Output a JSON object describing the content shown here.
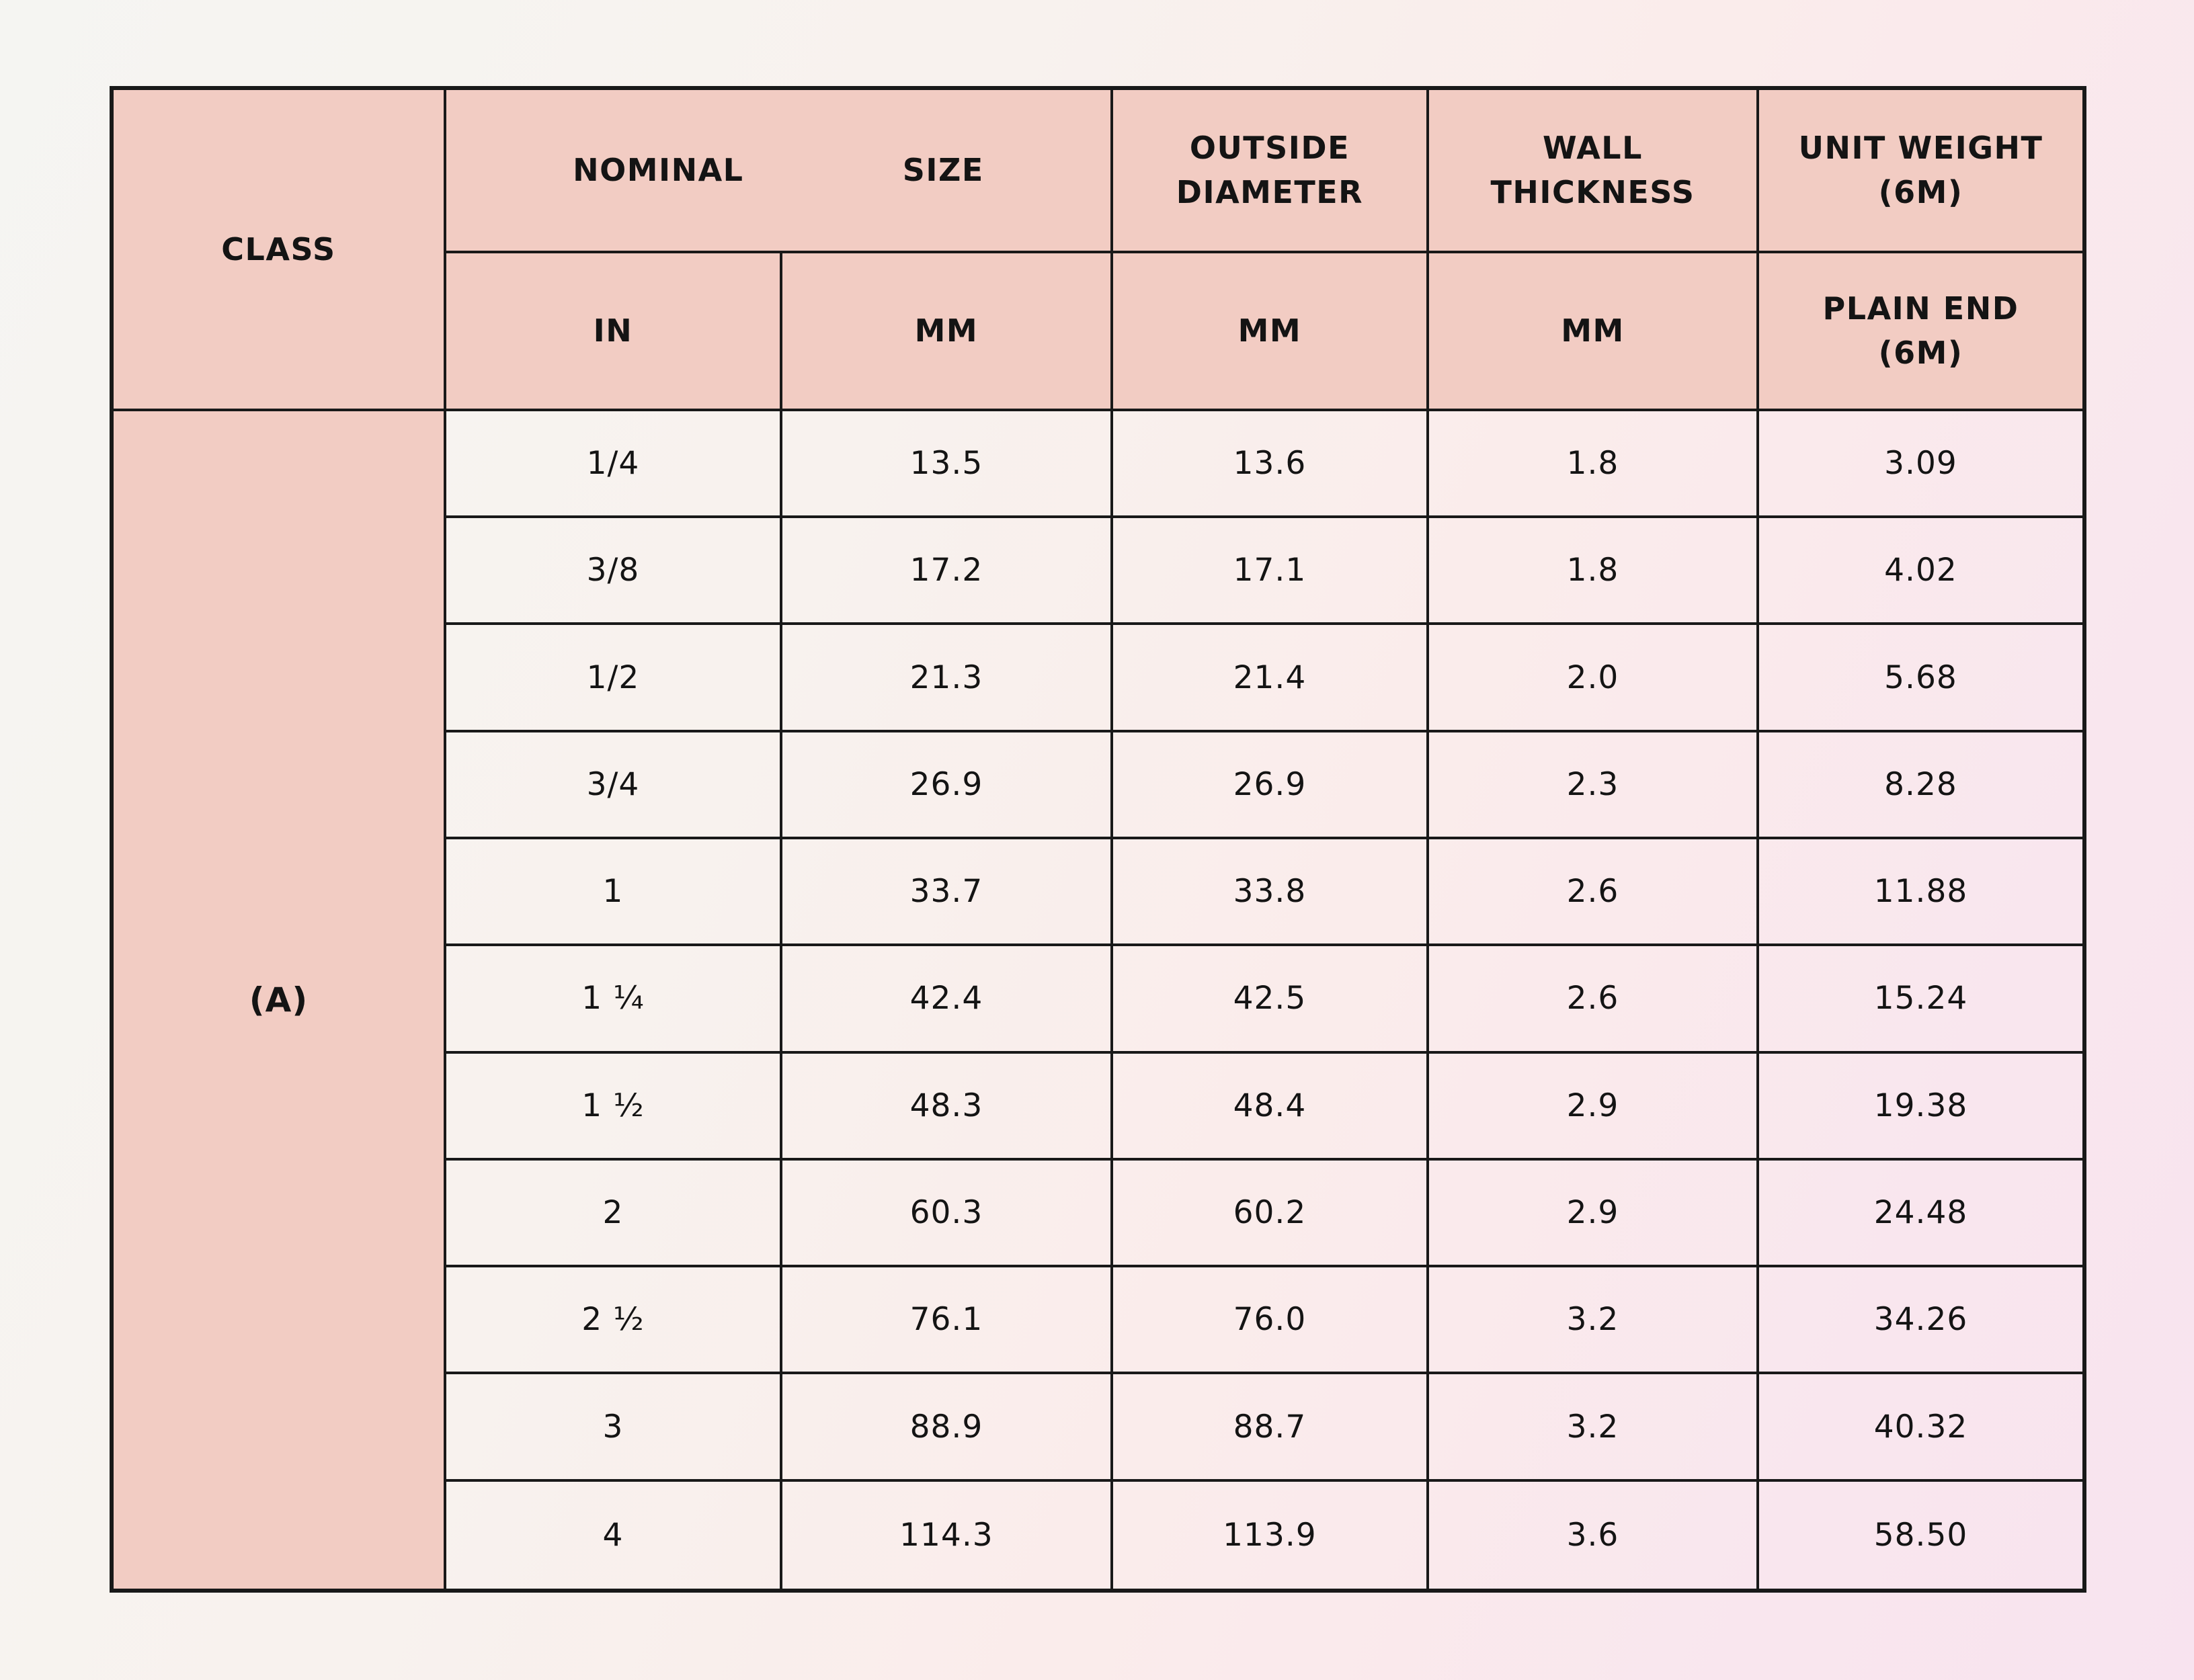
{
  "table": {
    "header": {
      "class_label": "CLASS",
      "nominal_size": {
        "word1": "NOMINAL",
        "word2": "SIZE",
        "sub_in": "IN",
        "sub_mm": "MM"
      },
      "outside_diameter": {
        "line1": "OUTSIDE",
        "line2": "DIAMETER",
        "sub": "MM"
      },
      "wall_thickness": {
        "line1": "WALL",
        "line2": "THICKNESS",
        "sub": "MM"
      },
      "unit_weight": {
        "line1": "UNIT WEIGHT",
        "line2": "(6M)",
        "sub_line1": "PLAIN END",
        "sub_line2": "(6M)"
      }
    },
    "class_value": "(A)",
    "columns": [
      "NOMINAL SIZE IN",
      "NOMINAL SIZE MM",
      "OUTSIDE DIAMETER MM",
      "WALL THICKNESS MM",
      "UNIT WEIGHT (6M) PLAIN END (6M)"
    ],
    "rows": [
      {
        "in": "1/4",
        "mm": "13.5",
        "od": "13.6",
        "wall": "1.8",
        "weight": "3.09"
      },
      {
        "in": "3/8",
        "mm": "17.2",
        "od": "17.1",
        "wall": "1.8",
        "weight": "4.02"
      },
      {
        "in": "1/2",
        "mm": "21.3",
        "od": "21.4",
        "wall": "2.0",
        "weight": "5.68"
      },
      {
        "in": "3/4",
        "mm": "26.9",
        "od": "26.9",
        "wall": "2.3",
        "weight": "8.28"
      },
      {
        "in": "1",
        "mm": "33.7",
        "od": "33.8",
        "wall": "2.6",
        "weight": "11.88"
      },
      {
        "in": "1 ¼",
        "mm": "42.4",
        "od": "42.5",
        "wall": "2.6",
        "weight": "15.24"
      },
      {
        "in": "1 ½",
        "mm": "48.3",
        "od": "48.4",
        "wall": "2.9",
        "weight": "19.38"
      },
      {
        "in": "2",
        "mm": "60.3",
        "od": "60.2",
        "wall": "2.9",
        "weight": "24.48"
      },
      {
        "in": "2 ½",
        "mm": "76.1",
        "od": "76.0",
        "wall": "3.2",
        "weight": "34.26"
      },
      {
        "in": "3",
        "mm": "88.9",
        "od": "88.7",
        "wall": "3.2",
        "weight": "40.32"
      },
      {
        "in": "4",
        "mm": "114.3",
        "od": "113.9",
        "wall": "3.6",
        "weight": "58.50"
      }
    ]
  },
  "colors": {
    "header_bg": "#f2ccc3",
    "border": "#191919",
    "page_gradient_start": "#f5f5f2",
    "page_gradient_end": "#f8e3ef",
    "text": "#141414"
  }
}
